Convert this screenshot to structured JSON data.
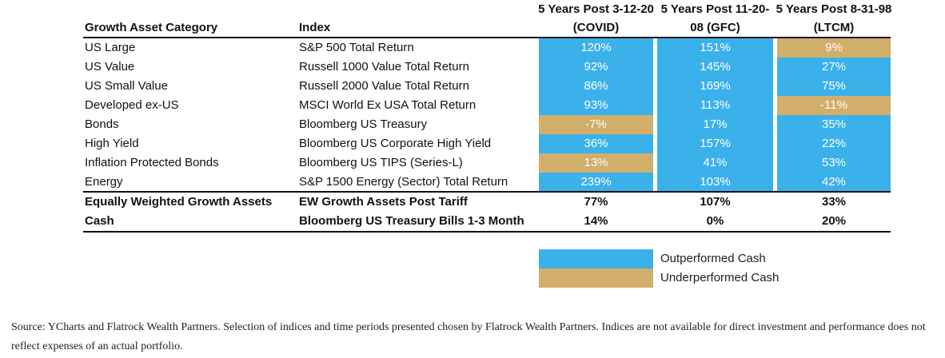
{
  "table": {
    "headers": [
      "Growth Asset Category",
      "Index",
      "5 Years Post 3-12-20 (COVID)",
      "5 Years Post 11-20-08 (GFC)",
      "5 Years Post 8-31-98 (LTCM)"
    ],
    "rows": [
      {
        "cells": [
          "US Large",
          "S&P 500 Total Return",
          "120%",
          "151%",
          "9%"
        ],
        "colors": [
          "#3bb1eb",
          "#3bb1eb",
          "#d2ae6b"
        ]
      },
      {
        "cells": [
          "US Value",
          "Russell 1000 Value Total Return",
          "92%",
          "145%",
          "27%"
        ],
        "colors": [
          "#3bb1eb",
          "#3bb1eb",
          "#3bb1eb"
        ]
      },
      {
        "cells": [
          "US Small Value",
          "Russell 2000 Value Total Return",
          "86%",
          "169%",
          "75%"
        ],
        "colors": [
          "#3bb1eb",
          "#3bb1eb",
          "#3bb1eb"
        ]
      },
      {
        "cells": [
          "Developed ex-US",
          "MSCI World Ex USA Total Return",
          "93%",
          "113%",
          "-11%"
        ],
        "colors": [
          "#3bb1eb",
          "#3bb1eb",
          "#d2ae6b"
        ]
      },
      {
        "cells": [
          "Bonds",
          "Bloomberg US Treasury",
          "-7%",
          "17%",
          "35%"
        ],
        "colors": [
          "#d2ae6b",
          "#3bb1eb",
          "#3bb1eb"
        ]
      },
      {
        "cells": [
          "High Yield",
          "Bloomberg US Corporate High Yield",
          "36%",
          "157%",
          "22%"
        ],
        "colors": [
          "#3bb1eb",
          "#3bb1eb",
          "#3bb1eb"
        ]
      },
      {
        "cells": [
          "Inflation Protected Bonds",
          "Bloomberg US TIPS (Series-L)",
          "13%",
          "41%",
          "53%"
        ],
        "colors": [
          "#d2ae6b",
          "#3bb1eb",
          "#3bb1eb"
        ]
      },
      {
        "cells": [
          "Energy",
          "S&P 1500 Energy (Sector) Total Return",
          "239%",
          "103%",
          "42%"
        ],
        "colors": [
          "#3bb1eb",
          "#3bb1eb",
          "#3bb1eb"
        ]
      }
    ],
    "summary_rows": [
      [
        "Equally Weighted Growth Assets",
        "EW Growth Assets Post Tariff",
        "77%",
        "107%",
        "33%"
      ],
      [
        "Cash",
        "Bloomberg US Treasury Bills 1-3 Month",
        "14%",
        "0%",
        "20%"
      ]
    ]
  },
  "legend": [
    {
      "label": "Outperformed Cash",
      "color": "#3bb1eb"
    },
    {
      "label": "Underperformed Cash",
      "color": "#d2ae6b"
    }
  ],
  "source": "Source: YCharts and Flatrock Wealth Partners.  Selection of indices and time periods presented chosen by Flatrock Wealth Partners. Indices are not available for direct investment and performance does not reflect expenses of an actual portfolio."
}
